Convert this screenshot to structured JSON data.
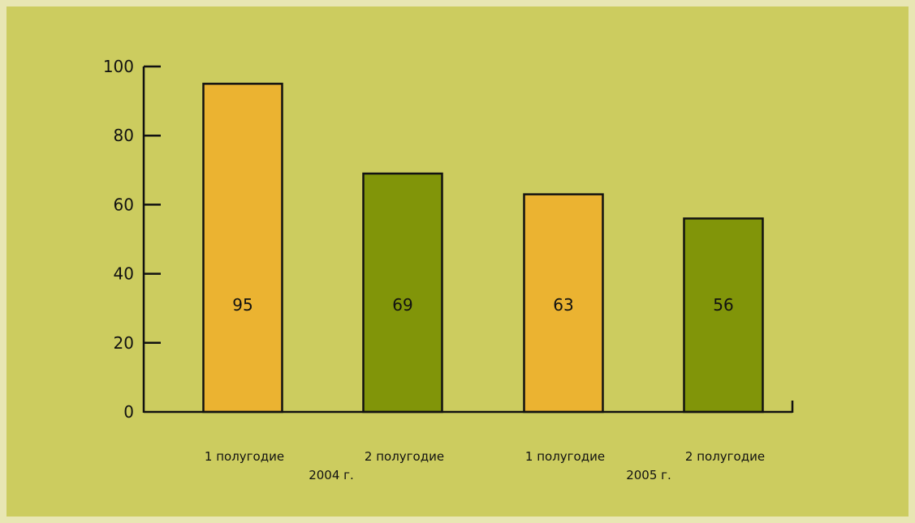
{
  "page": {
    "background": "#e8e6b3",
    "panel_color": "#cccc5f"
  },
  "chart_data": {
    "type": "bar",
    "categories": [
      "1 полугодие",
      "2 полугодие",
      "1 полугодие",
      "2 полугодие"
    ],
    "groups": [
      {
        "label": "2004 г.",
        "categories": [
          0,
          1
        ]
      },
      {
        "label": "2005 г.",
        "categories": [
          2,
          3
        ]
      }
    ],
    "values": [
      95,
      69,
      63,
      56
    ],
    "data_labels": [
      "95",
      "69",
      "63",
      "56"
    ],
    "colors": [
      "#ebb331",
      "#819509",
      "#ebb331",
      "#819509"
    ],
    "ylim": [
      0,
      100
    ],
    "yticks": [
      0,
      20,
      40,
      60,
      80,
      100
    ],
    "ytick_labels": [
      "0",
      "20",
      "40",
      "60",
      "80",
      "100"
    ],
    "title": "",
    "xlabel": "",
    "ylabel": "",
    "grid": false,
    "legend": "none"
  }
}
